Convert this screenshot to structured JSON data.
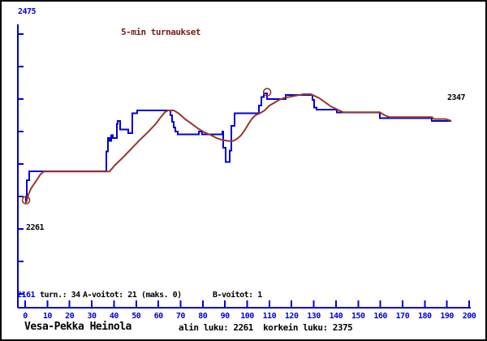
{
  "title": "5-min turnaukset",
  "colors": {
    "series_blue": "#0000d8",
    "series_brown": "#993826",
    "axis_blue": "#0000d8",
    "text_black": "#000000",
    "title_red": "#7a2015"
  },
  "axis_labels": {
    "y_top": "2475",
    "y_bottom": "2161",
    "lowest_marker": "2261",
    "final_value": "2347"
  },
  "stats_line": {
    "left_value": "2161",
    "turn": "turn.: 34",
    "a_voitot": "A-voitot: 21",
    "maks": "(maks. 0)",
    "b_voitot": "B-voitot: 1"
  },
  "footer": {
    "player": "Vesa-Pekka Heinola",
    "summary": "alin luku: 2261  korkein luku: 2375"
  },
  "chart_data": {
    "type": "line",
    "title": "5-min turnaukset",
    "xlabel": "",
    "ylabel": "",
    "x_range": [
      0,
      200
    ],
    "y_range": [
      2161,
      2475
    ],
    "x_ticks": [
      0,
      10,
      20,
      30,
      40,
      50,
      60,
      70,
      80,
      90,
      100,
      110,
      120,
      130,
      140,
      150,
      160,
      170,
      180,
      190,
      200
    ],
    "grid": false,
    "legend_position": "none",
    "annotations": {
      "lowest": 2261,
      "highest": 2375,
      "final": 2347,
      "tournaments": 34,
      "a_wins": 21,
      "b_wins": 1
    },
    "series": [
      {
        "name": "rating",
        "color_key": "series_blue",
        "points": [
          [
            0.4,
            2261
          ],
          [
            0.4,
            2268
          ],
          [
            0.7,
            2268
          ],
          [
            0.7,
            2285
          ],
          [
            1.8,
            2285
          ],
          [
            1.8,
            2294
          ],
          [
            36.6,
            2294
          ],
          [
            36.6,
            2315
          ],
          [
            37.3,
            2315
          ],
          [
            37.3,
            2329
          ],
          [
            38,
            2329
          ],
          [
            38,
            2326
          ],
          [
            38.8,
            2326
          ],
          [
            38.8,
            2332
          ],
          [
            39.5,
            2332
          ],
          [
            39.5,
            2329
          ],
          [
            41.3,
            2329
          ],
          [
            41.3,
            2344
          ],
          [
            41.7,
            2344
          ],
          [
            41.7,
            2347
          ],
          [
            42.8,
            2347
          ],
          [
            42.8,
            2338
          ],
          [
            46.4,
            2338
          ],
          [
            46.4,
            2334
          ],
          [
            48.3,
            2334
          ],
          [
            48.3,
            2355
          ],
          [
            50.5,
            2355
          ],
          [
            50.5,
            2358
          ],
          [
            65.4,
            2358
          ],
          [
            65.4,
            2353
          ],
          [
            66.2,
            2353
          ],
          [
            66.2,
            2346
          ],
          [
            66.9,
            2346
          ],
          [
            66.9,
            2340
          ],
          [
            67.6,
            2340
          ],
          [
            67.6,
            2336
          ],
          [
            68.7,
            2336
          ],
          [
            68.7,
            2333
          ],
          [
            78.2,
            2333
          ],
          [
            78.2,
            2336
          ],
          [
            79.7,
            2336
          ],
          [
            79.7,
            2333
          ],
          [
            88.8,
            2333
          ],
          [
            88.8,
            2336
          ],
          [
            89.2,
            2336
          ],
          [
            89.2,
            2319
          ],
          [
            90.3,
            2319
          ],
          [
            90.3,
            2304
          ],
          [
            92.1,
            2304
          ],
          [
            92.1,
            2316
          ],
          [
            92.9,
            2316
          ],
          [
            92.9,
            2342
          ],
          [
            94.3,
            2342
          ],
          [
            94.3,
            2355
          ],
          [
            105.3,
            2355
          ],
          [
            105.3,
            2363
          ],
          [
            106.4,
            2363
          ],
          [
            106.4,
            2372
          ],
          [
            107.5,
            2372
          ],
          [
            107.5,
            2376
          ],
          [
            109,
            2376
          ],
          [
            109,
            2370
          ],
          [
            110,
            2370
          ],
          [
            117.4,
            2370
          ],
          [
            117.4,
            2374
          ],
          [
            119.2,
            2374
          ],
          [
            129.4,
            2374
          ],
          [
            129.4,
            2369
          ],
          [
            130.2,
            2369
          ],
          [
            130.2,
            2361
          ],
          [
            131.3,
            2361
          ],
          [
            131.3,
            2359
          ],
          [
            140.4,
            2359
          ],
          [
            140.4,
            2356
          ],
          [
            159.8,
            2356
          ],
          [
            159.8,
            2350
          ],
          [
            160.4,
            2350
          ],
          [
            183.2,
            2350
          ],
          [
            183.2,
            2347
          ],
          [
            184,
            2347
          ],
          [
            192,
            2347
          ]
        ]
      },
      {
        "name": "moving-average",
        "color_key": "series_brown",
        "points": [
          [
            0.4,
            2261
          ],
          [
            1.5,
            2270
          ],
          [
            2.6,
            2276
          ],
          [
            4,
            2281
          ],
          [
            5.5,
            2286
          ],
          [
            6.9,
            2291
          ],
          [
            8.4,
            2294
          ],
          [
            38,
            2294
          ],
          [
            40.6,
            2301
          ],
          [
            44.2,
            2309
          ],
          [
            47.9,
            2318
          ],
          [
            51.6,
            2327
          ],
          [
            55.2,
            2335
          ],
          [
            58.9,
            2344
          ],
          [
            61.1,
            2351
          ],
          [
            62.9,
            2356
          ],
          [
            64.4,
            2358
          ],
          [
            66.9,
            2358
          ],
          [
            69.1,
            2355
          ],
          [
            72,
            2349
          ],
          [
            75,
            2344
          ],
          [
            77.9,
            2339
          ],
          [
            80.8,
            2335
          ],
          [
            83.7,
            2332
          ],
          [
            86.3,
            2329
          ],
          [
            88.8,
            2327
          ],
          [
            91.4,
            2326
          ],
          [
            93.6,
            2326
          ],
          [
            95.4,
            2328
          ],
          [
            97.3,
            2332
          ],
          [
            99.1,
            2338
          ],
          [
            100.9,
            2345
          ],
          [
            102.4,
            2350
          ],
          [
            103.8,
            2353
          ],
          [
            105.7,
            2355
          ],
          [
            107.9,
            2358
          ],
          [
            110,
            2363
          ],
          [
            112.2,
            2366
          ],
          [
            114.4,
            2369
          ],
          [
            116.6,
            2371
          ],
          [
            118.8,
            2372
          ],
          [
            121,
            2373
          ],
          [
            123.2,
            2374
          ],
          [
            125.4,
            2375
          ],
          [
            128.7,
            2375
          ],
          [
            130.5,
            2373
          ],
          [
            132.4,
            2371
          ],
          [
            134.2,
            2368
          ],
          [
            136,
            2365
          ],
          [
            137.8,
            2362
          ],
          [
            139.7,
            2360
          ],
          [
            141.5,
            2358
          ],
          [
            143.3,
            2356
          ],
          [
            159.8,
            2356
          ],
          [
            161.2,
            2354
          ],
          [
            162.8,
            2352
          ],
          [
            164.1,
            2351
          ],
          [
            183.2,
            2351
          ],
          [
            184.3,
            2349
          ],
          [
            189.4,
            2349
          ],
          [
            192,
            2347
          ]
        ]
      }
    ],
    "markers": [
      {
        "x": 0.4,
        "y": 2264,
        "meaning": "start-lowest"
      },
      {
        "x": 109,
        "y": 2377,
        "meaning": "peak"
      }
    ]
  }
}
